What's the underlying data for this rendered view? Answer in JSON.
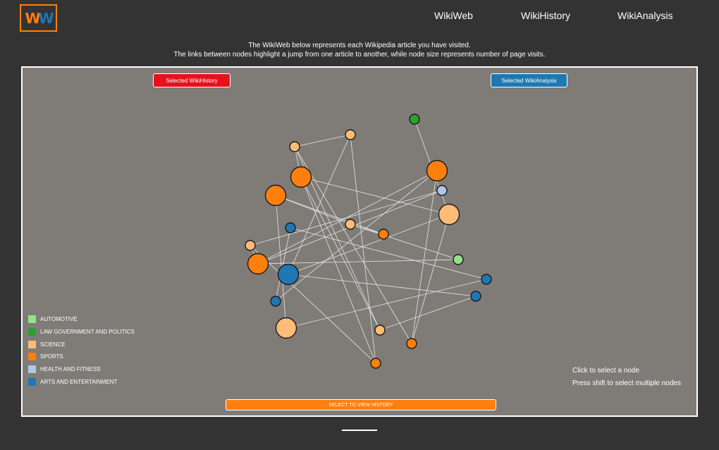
{
  "header": {
    "logo_text_1": "W",
    "logo_text_2": "W",
    "nav": [
      {
        "label": "WikiWeb"
      },
      {
        "label": "WikiHistory"
      },
      {
        "label": "WikiAnalysis"
      }
    ]
  },
  "intro": {
    "line1": "The WikiWeb below represents each Wikipedia article you have visited.",
    "line2": "The links between nodes highlight a jump from one article to another, while node size represents number of page visits."
  },
  "panel": {
    "selected_history_label": "Selected WikiHistory",
    "selected_history_color": "#e8101b",
    "selected_analysis_label": "Selected WikiAnalysis",
    "selected_analysis_color": "#1f77b4",
    "view_history_label": "SELECT TO VIEW HISTORY",
    "view_history_color": "#ff7f0e",
    "hint_line1": "Click to select a node",
    "hint_line2": "Press shift to select multiple nodes"
  },
  "legend": [
    {
      "label": "AUTOMOTIVE",
      "color": "#98df8a"
    },
    {
      "label": "LAW GOVERNMENT AND POLITICS",
      "color": "#2ca02c"
    },
    {
      "label": "SCIENCE",
      "color": "#ffbb78"
    },
    {
      "label": "SPORTS",
      "color": "#ff7f0e"
    },
    {
      "label": "HEALTH AND FITNESS",
      "color": "#aec7e8"
    },
    {
      "label": "ARTS AND ENTERTAINMENT",
      "color": "#1f77b4"
    }
  ],
  "graph": {
    "nodes": [
      {
        "category": "LAW GOVERNMENT AND POLITICS",
        "visits": 1
      },
      {
        "category": "SCIENCE",
        "visits": 1
      },
      {
        "category": "SCIENCE",
        "visits": 1
      },
      {
        "category": "SPORTS",
        "visits": 3
      },
      {
        "category": "SPORTS",
        "visits": 3
      },
      {
        "category": "HEALTH AND FITNESS",
        "visits": 1
      },
      {
        "category": "SPORTS",
        "visits": 3
      },
      {
        "category": "SCIENCE",
        "visits": 3
      },
      {
        "category": "ARTS AND ENTERTAINMENT",
        "visits": 1
      },
      {
        "category": "SCIENCE",
        "visits": 1
      },
      {
        "category": "SPORTS",
        "visits": 1
      },
      {
        "category": "SCIENCE",
        "visits": 1
      },
      {
        "category": "SPORTS",
        "visits": 3
      },
      {
        "category": "ARTS AND ENTERTAINMENT",
        "visits": 3
      },
      {
        "category": "AUTOMOTIVE",
        "visits": 1
      },
      {
        "category": "ARTS AND ENTERTAINMENT",
        "visits": 1
      },
      {
        "category": "ARTS AND ENTERTAINMENT",
        "visits": 1
      },
      {
        "category": "ARTS AND ENTERTAINMENT",
        "visits": 1
      },
      {
        "category": "SCIENCE",
        "visits": 3
      },
      {
        "category": "SCIENCE",
        "visits": 1
      },
      {
        "category": "SPORTS",
        "visits": 1
      },
      {
        "category": "SPORTS",
        "visits": 1
      }
    ],
    "links": [
      [
        0,
        7
      ],
      [
        1,
        2
      ],
      [
        2,
        4
      ],
      [
        2,
        19
      ],
      [
        3,
        12
      ],
      [
        3,
        20
      ],
      [
        4,
        7
      ],
      [
        4,
        19
      ],
      [
        4,
        21
      ],
      [
        5,
        11
      ],
      [
        6,
        18
      ],
      [
        6,
        10
      ],
      [
        7,
        20
      ],
      [
        7,
        13
      ],
      [
        8,
        17
      ],
      [
        8,
        15
      ],
      [
        9,
        14
      ],
      [
        9,
        6
      ],
      [
        11,
        12
      ],
      [
        12,
        14
      ],
      [
        13,
        16
      ],
      [
        15,
        18
      ],
      [
        16,
        19
      ],
      [
        17,
        3
      ],
      [
        1,
        21
      ],
      [
        10,
        9
      ],
      [
        2,
        20
      ],
      [
        11,
        21
      ],
      [
        5,
        12
      ],
      [
        13,
        1
      ]
    ]
  }
}
